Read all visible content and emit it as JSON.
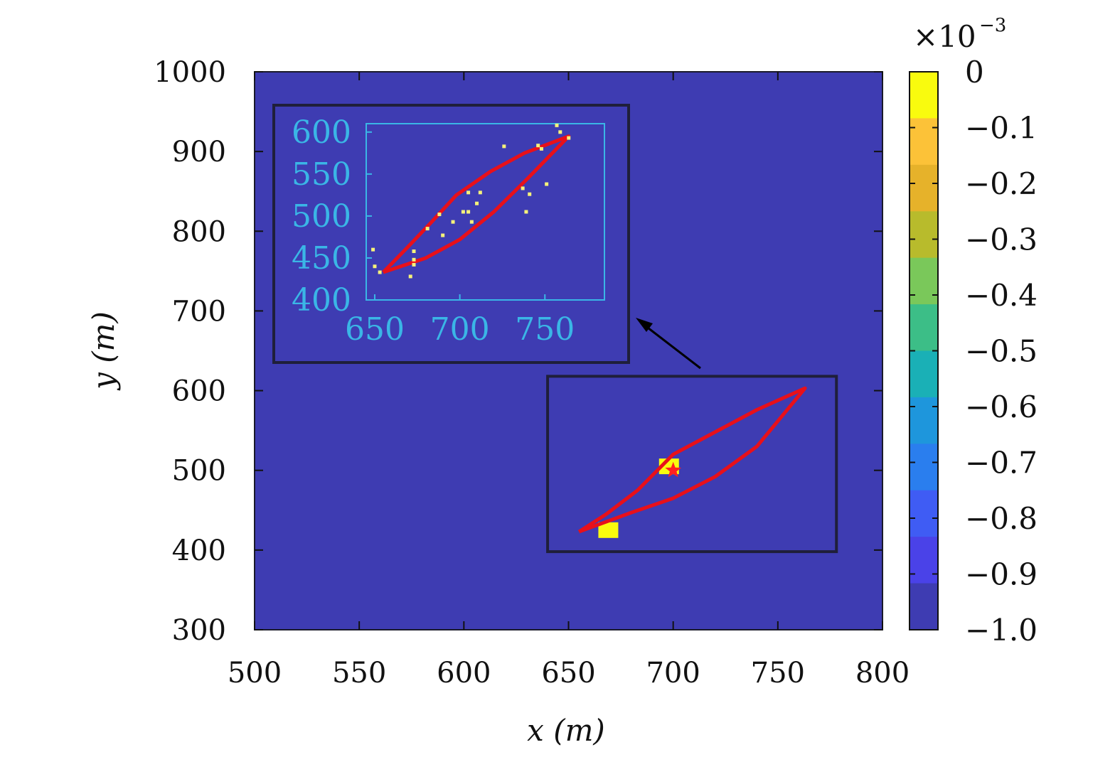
{
  "chart_data": {
    "type": "heatmap",
    "xlabel": "x (m)",
    "ylabel": "y (m)",
    "xlim": [
      500,
      800
    ],
    "ylim": [
      300,
      1000
    ],
    "xticks": [
      "500",
      "550",
      "600",
      "650",
      "700",
      "750",
      "800"
    ],
    "yticks": [
      "300",
      "400",
      "500",
      "600",
      "700",
      "800",
      "900",
      "1000"
    ],
    "background_value": -0.001,
    "highlight_cells": [
      {
        "x": 698,
        "y": 505,
        "value": 0
      },
      {
        "x": 669,
        "y": 425,
        "value": 0
      }
    ],
    "source_marker": {
      "x": 700,
      "y": 500
    },
    "curves": [
      {
        "points_upper": [
          [
            655,
            423
          ],
          [
            668,
            445
          ],
          [
            683,
            475
          ],
          [
            700,
            520
          ],
          [
            720,
            548
          ],
          [
            740,
            576
          ],
          [
            763,
            603
          ]
        ],
        "points_lower": [
          [
            655,
            423
          ],
          [
            680,
            447
          ],
          [
            700,
            465
          ],
          [
            720,
            492
          ],
          [
            740,
            530
          ],
          [
            763,
            603
          ]
        ]
      }
    ],
    "zoom_box": {
      "x": [
        640,
        778
      ],
      "y": [
        398,
        618
      ]
    },
    "colorbar": {
      "multiplier_label": "×10",
      "multiplier_exp": "−3",
      "ticks": [
        "0",
        "−0.1",
        "−0.2",
        "−0.3",
        "−0.4",
        "−0.5",
        "−0.6",
        "−0.7",
        "−0.8",
        "−0.9",
        "−1.0"
      ],
      "colors": [
        "#f9fb0e",
        "#fcc238",
        "#e6b22a",
        "#b8bb2c",
        "#7ac85a",
        "#3cbe87",
        "#1ab0b6",
        "#1e96dc",
        "#2a7eee",
        "#3f5cf4",
        "#4a42e8",
        "#3e3cb2"
      ]
    },
    "inset": {
      "xlim": [
        645,
        785
      ],
      "ylim": [
        400,
        610
      ],
      "xticks": [
        "650",
        "700",
        "750"
      ],
      "yticks": [
        "400",
        "450",
        "500",
        "550",
        "600"
      ],
      "points": [
        [
          649,
          460
        ],
        [
          650,
          440
        ],
        [
          653,
          433
        ],
        [
          671,
          428
        ],
        [
          673,
          458
        ],
        [
          673,
          448
        ],
        [
          673,
          442
        ],
        [
          681,
          485
        ],
        [
          688,
          502
        ],
        [
          690,
          477
        ],
        [
          696,
          493
        ],
        [
          702,
          505
        ],
        [
          705,
          505
        ],
        [
          705,
          528
        ],
        [
          707,
          493
        ],
        [
          710,
          515
        ],
        [
          712,
          528
        ],
        [
          726,
          583
        ],
        [
          737,
          533
        ],
        [
          739,
          505
        ],
        [
          741,
          526
        ],
        [
          746,
          584
        ],
        [
          748,
          580
        ],
        [
          751,
          538
        ],
        [
          757,
          608
        ],
        [
          759,
          600
        ],
        [
          764,
          593
        ]
      ],
      "curve_upper": [
        [
          655,
          433
        ],
        [
          668,
          460
        ],
        [
          683,
          492
        ],
        [
          698,
          525
        ],
        [
          718,
          553
        ],
        [
          738,
          575
        ],
        [
          764,
          595
        ]
      ],
      "curve_lower": [
        [
          655,
          433
        ],
        [
          680,
          450
        ],
        [
          700,
          472
        ],
        [
          720,
          505
        ],
        [
          740,
          545
        ],
        [
          764,
          595
        ]
      ]
    }
  }
}
